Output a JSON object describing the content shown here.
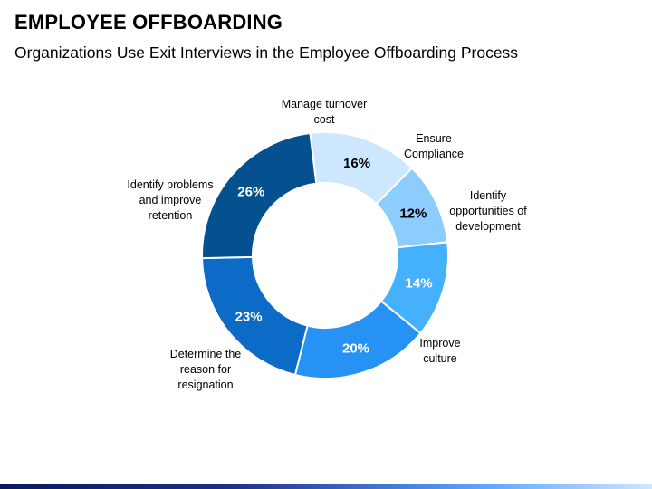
{
  "header": {
    "title": "EMPLOYEE OFFBOARDING",
    "subtitle": "Organizations Use Exit Interviews in the Employee Offboarding Process"
  },
  "chart_data": {
    "type": "pie",
    "donut": true,
    "slices": [
      {
        "label": "Manage turnover cost",
        "label_lines": [
          "Manage turnover",
          "cost"
        ],
        "value": 16,
        "value_label": "16%",
        "color": "#cce7ff",
        "text_color": "#000000"
      },
      {
        "label": "Ensure Compliance",
        "label_lines": [
          "Ensure",
          "Compliance"
        ],
        "value": 12,
        "value_label": "12%",
        "color": "#8cccff",
        "text_color": "#000000"
      },
      {
        "label": "Identify opportunities of development",
        "label_lines": [
          "Identify",
          "opportunities of",
          "development"
        ],
        "value": 14,
        "value_label": "14%",
        "color": "#45b0fb",
        "text_color": "#ffffff"
      },
      {
        "label": "Improve culture",
        "label_lines": [
          "Improve",
          "culture"
        ],
        "value": 20,
        "value_label": "20%",
        "color": "#2592f4",
        "text_color": "#ffffff"
      },
      {
        "label": "Determine the reason for resignation",
        "label_lines": [
          "Determine the",
          "reason for",
          "resignation"
        ],
        "value": 23,
        "value_label": "23%",
        "color": "#0b6bc7",
        "text_color": "#ffffff"
      },
      {
        "label": "Identify problems and improve retention",
        "label_lines": [
          "Identify problems",
          "and improve",
          "retention"
        ],
        "value": 26,
        "value_label": "26%",
        "color": "#05518f",
        "text_color": "#ffffff"
      }
    ]
  }
}
